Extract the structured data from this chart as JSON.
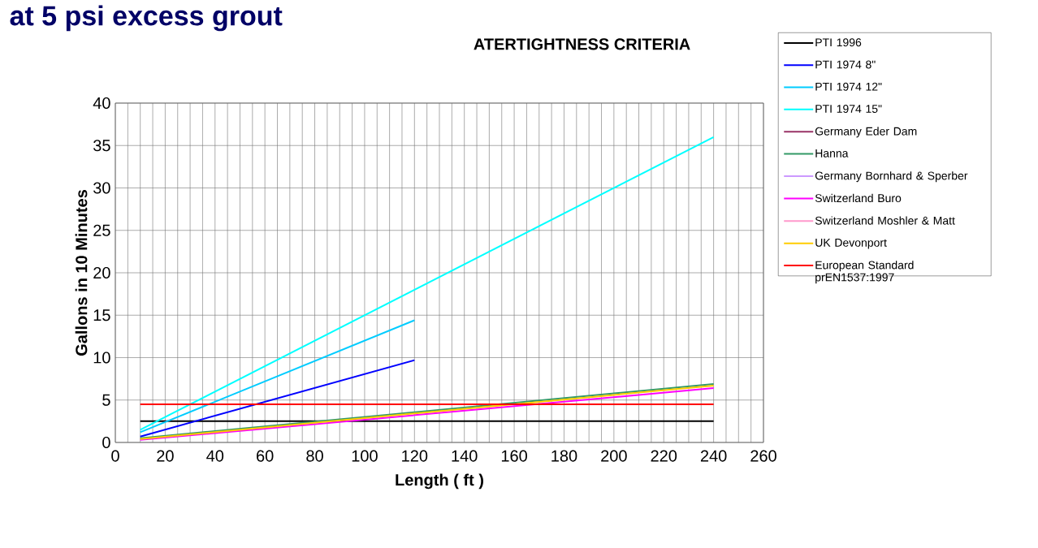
{
  "chart_data": {
    "type": "line",
    "title": "ATERTIGHTNESS CRITERIA",
    "xlabel": "Length ( ft )",
    "ylabel": "Gallons in 10 Minutes",
    "annotations": [
      "at 5 psi excess grout"
    ],
    "xlim": [
      0,
      260
    ],
    "xticks": [
      0,
      20,
      40,
      60,
      80,
      100,
      120,
      140,
      160,
      180,
      200,
      220,
      240,
      260
    ],
    "ylim": [
      0,
      40
    ],
    "yticks": [
      0,
      5,
      10,
      15,
      20,
      25,
      30,
      35,
      40
    ],
    "grid": true,
    "legend": "right",
    "marker": "none",
    "line_style": "solid",
    "series": [
      {
        "name": "PTI 1996",
        "color": "#000000",
        "x": [
          10,
          240
        ],
        "values": [
          2.5,
          2.5
        ]
      },
      {
        "name": "PTI 1974 8\"",
        "color": "#0000ff",
        "x": [
          10,
          120
        ],
        "values": [
          0.7,
          9.7
        ]
      },
      {
        "name": "PTI 1974 12\"",
        "color": "#00ccff",
        "x": [
          10,
          120
        ],
        "values": [
          1.2,
          14.4
        ]
      },
      {
        "name": "PTI 1974 15\"",
        "color": "#00ffff",
        "x": [
          10,
          240
        ],
        "values": [
          1.5,
          36
        ]
      },
      {
        "name": "Germany Eder Dam",
        "color": "#993366",
        "values": [
          null,
          null
        ]
      },
      {
        "name": "Hanna",
        "color": "#339966",
        "x": [
          10,
          240
        ],
        "values": [
          0.5,
          6.9
        ]
      },
      {
        "name": "Germany Bornhard & Sperber",
        "color": "#cc99ff",
        "values": [
          null,
          null
        ]
      },
      {
        "name": "Switzerland Buro",
        "color": "#ff00ff",
        "x": [
          10,
          240
        ],
        "values": [
          0.3,
          6.4
        ]
      },
      {
        "name": "Switzerland  Moshler & Matt",
        "color": "#ff99cc",
        "values": [
          null,
          null
        ]
      },
      {
        "name": "UK  Devonport",
        "color": "#ffcc00",
        "x": [
          10,
          240
        ],
        "values": [
          0.4,
          6.7
        ]
      },
      {
        "name": "European Standard prEN1537:1997",
        "color": "#ff0000",
        "x": [
          10,
          240
        ],
        "values": [
          4.5,
          4.5
        ]
      }
    ]
  }
}
